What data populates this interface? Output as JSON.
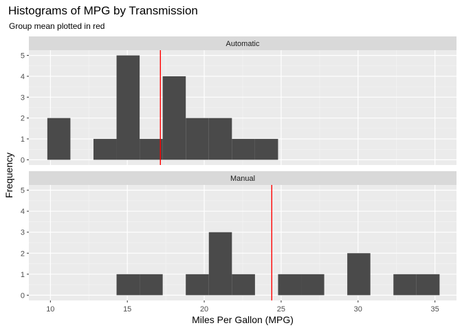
{
  "chart_data": {
    "type": "bar",
    "title": "Histograms of MPG by Transmission",
    "subtitle": "Group mean plotted in red",
    "xlabel": "Miles Per Gallon (MPG)",
    "ylabel": "Frequency",
    "xlim": [
      8.6,
      36.4
    ],
    "ylim": [
      -0.25,
      5.25
    ],
    "x_ticks": [
      10,
      15,
      20,
      25,
      30,
      35
    ],
    "y_ticks": [
      0,
      1,
      2,
      3,
      4,
      5
    ],
    "bin_width": 1.5,
    "grid": true,
    "colors": {
      "bar": "#4a4a4a",
      "mean": "#ff0000",
      "panel_bg": "#ebebeb",
      "strip_bg": "#d9d9d9"
    },
    "panels": [
      {
        "name": "Automatic",
        "mean": 17.15,
        "bins": [
          {
            "x0": 9.8,
            "x1": 11.3,
            "count": 2
          },
          {
            "x0": 12.8,
            "x1": 14.3,
            "count": 1
          },
          {
            "x0": 14.3,
            "x1": 15.8,
            "count": 5
          },
          {
            "x0": 15.8,
            "x1": 17.3,
            "count": 1
          },
          {
            "x0": 17.3,
            "x1": 18.8,
            "count": 4
          },
          {
            "x0": 18.8,
            "x1": 20.3,
            "count": 2
          },
          {
            "x0": 20.3,
            "x1": 21.8,
            "count": 2
          },
          {
            "x0": 21.8,
            "x1": 23.3,
            "count": 1
          },
          {
            "x0": 23.3,
            "x1": 24.8,
            "count": 1
          }
        ]
      },
      {
        "name": "Manual",
        "mean": 24.39,
        "bins": [
          {
            "x0": 14.3,
            "x1": 15.8,
            "count": 1
          },
          {
            "x0": 15.8,
            "x1": 17.3,
            "count": 1
          },
          {
            "x0": 18.8,
            "x1": 20.3,
            "count": 1
          },
          {
            "x0": 20.3,
            "x1": 21.8,
            "count": 3
          },
          {
            "x0": 21.8,
            "x1": 23.3,
            "count": 1
          },
          {
            "x0": 24.8,
            "x1": 26.3,
            "count": 1
          },
          {
            "x0": 26.3,
            "x1": 27.8,
            "count": 1
          },
          {
            "x0": 29.3,
            "x1": 30.8,
            "count": 2
          },
          {
            "x0": 32.3,
            "x1": 33.8,
            "count": 1
          },
          {
            "x0": 33.8,
            "x1": 35.3,
            "count": 1
          }
        ]
      }
    ]
  }
}
